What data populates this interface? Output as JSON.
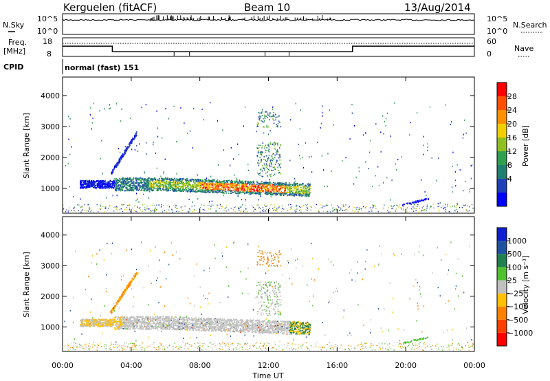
{
  "header": {
    "station": "Kerguelen (fitACF)",
    "beam": "Beam 10",
    "date": "13/Aug/2014"
  },
  "nsky_panel": {
    "left_label": "N.Sky",
    "right_label": "N.Search",
    "left_ticks": [
      "10^5",
      "10^0"
    ],
    "right_ticks": [
      "10^5",
      "10^0"
    ]
  },
  "freq_panel": {
    "left_label_line1": "Freq.",
    "left_label_line2": "[MHz]",
    "right_label": "Nave",
    "left_ticks": [
      "18",
      "8"
    ],
    "right_ticks": [
      "60",
      "0"
    ]
  },
  "cpid": {
    "label": "CPID",
    "value": "normal (fast) 151"
  },
  "power_panel": {
    "ylabel": "Slant Range [km]",
    "yticks": [
      "4000",
      "3000",
      "2000",
      "1000"
    ],
    "colorbar_label": "Power [dB]",
    "colorbar_ticks": [
      "28",
      "24",
      "20",
      "16",
      "12",
      "8",
      "4"
    ],
    "colors": [
      "#0000ff",
      "#2040b8",
      "#208070",
      "#30a050",
      "#90c020",
      "#f0d000",
      "#ff9000",
      "#ff5000",
      "#ff0000"
    ]
  },
  "velocity_panel": {
    "ylabel": "Slant Range [km]",
    "yticks": [
      "4000",
      "3000",
      "2000",
      "1000"
    ],
    "colorbar_label": "Velocity [m s⁻¹]",
    "colorbar_ticks": [
      "1000",
      "500",
      "100",
      "25",
      "−25",
      "−100",
      "−500",
      "−1000"
    ],
    "colors": [
      "#1020d0",
      "#2050a0",
      "#208050",
      "#50c030",
      "#c0c0c0",
      "#ffc000",
      "#ff8000",
      "#ff4000",
      "#ff0000"
    ]
  },
  "x_axis": {
    "label": "Time UT",
    "ticks": [
      "00:00",
      "04:00",
      "08:00",
      "12:00",
      "16:00",
      "20:00",
      "00:00"
    ]
  },
  "chart_data": {
    "type": "heatmap",
    "x_range_hours": [
      0,
      24
    ],
    "y_range_km": [
      200,
      4600
    ],
    "frequency_mhz": [
      {
        "start": 0,
        "end": 2.9,
        "value": 13.5
      },
      {
        "start": 2.9,
        "end": 16.9,
        "value": 10.5
      },
      {
        "start": 16.9,
        "end": 24,
        "value": 13.5
      }
    ],
    "echo_regions": [
      {
        "name": "main-band",
        "x": [
          1.0,
          14.4
        ],
        "y": [
          750,
          1400
        ],
        "peak_power_db": 28,
        "velocity": "±25"
      },
      {
        "name": "rising-streak-early",
        "x": [
          2.8,
          4.3
        ],
        "y": [
          1500,
          2800
        ],
        "peak_power_db": 8,
        "velocity": "-100"
      },
      {
        "name": "streak-noon",
        "x": [
          11.3,
          12.6
        ],
        "y": [
          3100,
          3500
        ],
        "peak_power_db": 12,
        "velocity": "-500"
      },
      {
        "name": "evening-patch",
        "x": [
          19.8,
          21.3
        ],
        "y": [
          500,
          700
        ],
        "peak_power_db": 4,
        "velocity": "100"
      }
    ]
  }
}
